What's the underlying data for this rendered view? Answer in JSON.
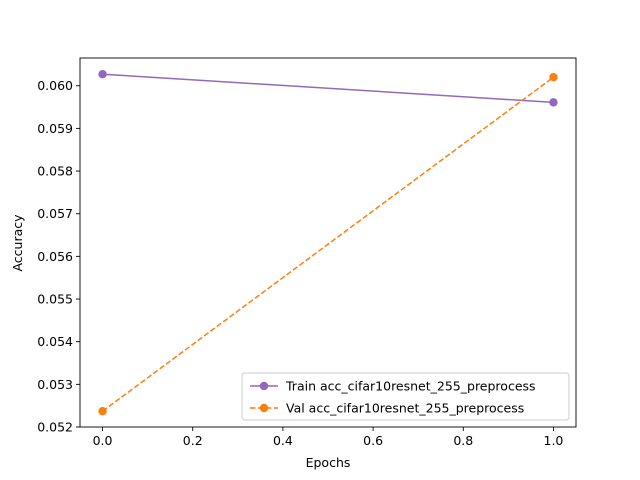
{
  "chart_data": {
    "type": "line",
    "title": "",
    "xlabel": "Epochs",
    "ylabel": "Accuracy",
    "xlim": [
      -0.05,
      1.05
    ],
    "ylim": [
      0.052,
      0.06065
    ],
    "xticks": [
      0.0,
      0.2,
      0.4,
      0.6,
      0.8,
      1.0
    ],
    "xtick_labels": [
      "0.0",
      "0.2",
      "0.4",
      "0.6",
      "0.8",
      "1.0"
    ],
    "yticks": [
      0.052,
      0.053,
      0.054,
      0.055,
      0.056,
      0.057,
      0.058,
      0.059,
      0.06
    ],
    "ytick_labels": [
      "0.052",
      "0.053",
      "0.054",
      "0.055",
      "0.056",
      "0.057",
      "0.058",
      "0.059",
      "0.060"
    ],
    "grid": false,
    "legend_position": "lower-right",
    "series": [
      {
        "name": "Train acc_cifar10resnet_255_preprocess",
        "x": [
          0,
          1
        ],
        "y": [
          0.06027,
          0.05961
        ],
        "color": "#9467bd",
        "line_style": "solid",
        "marker": "circle"
      },
      {
        "name": "Val acc_cifar10resnet_255_preprocess",
        "x": [
          0,
          1
        ],
        "y": [
          0.05237,
          0.0602
        ],
        "color": "#ff7f0e",
        "line_style": "dashed",
        "marker": "circle"
      }
    ]
  }
}
